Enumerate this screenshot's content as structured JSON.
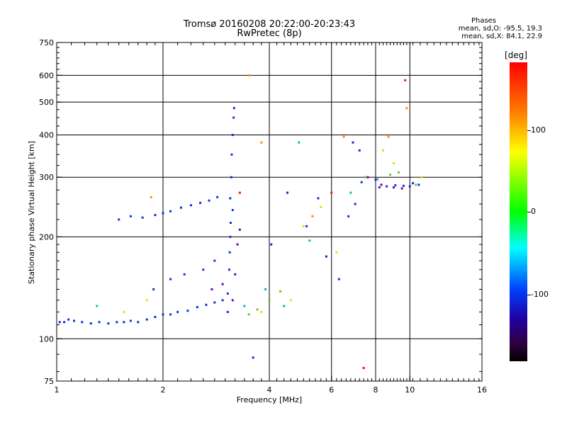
{
  "header": {
    "title_line1": "Tromsø 20160208 20:22:00-20:23:43",
    "title_line2": "RwPretec (8p)"
  },
  "phases": {
    "heading": "Phases",
    "line_o": "mean, sd,O: -95.5, 19.3",
    "line_x": "mean, sd,X:  84.1, 22.9"
  },
  "colorbar": {
    "unit": "[deg]",
    "ticks": [
      "100",
      "0",
      "-100"
    ],
    "colors": [
      "#ff0000",
      "#ff8000",
      "#ffff00",
      "#00ff00",
      "#00ffff",
      "#0040ff",
      "#2000a0",
      "#000000"
    ]
  },
  "chart_data": {
    "type": "scatter",
    "title": "",
    "xlabel": "Frequency [MHz]",
    "ylabel": "Stationary phase Virtual Height [km]",
    "xscale": "log",
    "yscale": "log",
    "xlim": [
      1,
      16
    ],
    "ylim": [
      75,
      750
    ],
    "xticks": [
      1,
      2,
      4,
      6,
      8,
      10,
      16
    ],
    "xtick_labels": [
      "1",
      "2",
      "4",
      "6",
      "8",
      "10",
      "16"
    ],
    "yticks": [
      75,
      100,
      200,
      300,
      400,
      500,
      600,
      750
    ],
    "ytick_labels": [
      "75",
      "100",
      "200",
      "300",
      "400",
      "500",
      "600",
      "750"
    ],
    "grid": true,
    "color_by": "phase (deg)",
    "series": [
      {
        "color": "#1030e0",
        "points": [
          [
            1.02,
            112
          ],
          [
            1.05,
            112
          ],
          [
            1.08,
            114
          ],
          [
            1.12,
            113
          ],
          [
            1.18,
            112
          ],
          [
            1.25,
            111
          ],
          [
            1.32,
            112
          ],
          [
            1.4,
            111
          ],
          [
            1.48,
            112
          ],
          [
            1.55,
            112
          ],
          [
            1.62,
            113
          ],
          [
            1.7,
            112
          ],
          [
            1.8,
            114
          ],
          [
            1.9,
            116
          ],
          [
            2.0,
            118
          ],
          [
            2.1,
            118
          ],
          [
            2.2,
            120
          ],
          [
            2.35,
            121
          ],
          [
            2.5,
            124
          ],
          [
            2.65,
            126
          ],
          [
            2.8,
            128
          ],
          [
            2.95,
            130
          ],
          [
            3.05,
            136
          ],
          [
            3.08,
            160
          ],
          [
            3.1,
            200
          ],
          [
            3.1,
            260
          ],
          [
            3.12,
            300
          ],
          [
            3.13,
            350
          ],
          [
            3.15,
            400
          ],
          [
            3.17,
            450
          ],
          [
            3.18,
            480
          ],
          [
            3.15,
            240
          ],
          [
            3.11,
            220
          ],
          [
            3.09,
            180
          ],
          [
            1.5,
            225
          ],
          [
            1.62,
            230
          ],
          [
            1.75,
            228
          ],
          [
            1.9,
            232
          ],
          [
            2.0,
            235
          ],
          [
            2.1,
            238
          ],
          [
            2.25,
            244
          ],
          [
            2.4,
            248
          ],
          [
            2.55,
            252
          ],
          [
            2.7,
            256
          ],
          [
            2.85,
            262
          ],
          [
            1.88,
            140
          ],
          [
            2.1,
            150
          ],
          [
            2.3,
            155
          ],
          [
            2.6,
            160
          ],
          [
            2.8,
            170
          ],
          [
            5.1,
            215
          ],
          [
            5.5,
            260
          ],
          [
            6.7,
            230
          ],
          [
            7.0,
            250
          ],
          [
            7.3,
            290
          ],
          [
            8.2,
            280
          ],
          [
            8.6,
            282
          ],
          [
            9.1,
            284
          ],
          [
            9.6,
            283
          ],
          [
            10.2,
            288
          ],
          [
            10.6,
            285
          ],
          [
            3.6,
            88
          ]
        ]
      },
      {
        "color": "#6a00c0",
        "points": [
          [
            6.9,
            380
          ],
          [
            7.2,
            360
          ],
          [
            7.6,
            300
          ],
          [
            8.0,
            295
          ],
          [
            8.3,
            285
          ],
          [
            9.0,
            280
          ],
          [
            9.5,
            278
          ],
          [
            10.0,
            282
          ],
          [
            3.05,
            120
          ],
          [
            3.15,
            130
          ],
          [
            3.2,
            155
          ],
          [
            3.25,
            190
          ],
          [
            3.3,
            210
          ],
          [
            2.75,
            140
          ],
          [
            2.95,
            145
          ],
          [
            4.05,
            190
          ],
          [
            4.5,
            270
          ],
          [
            5.8,
            175
          ],
          [
            6.3,
            150
          ],
          [
            7.4,
            82
          ]
        ]
      },
      {
        "color": "#00c0c0",
        "points": [
          [
            1.3,
            125
          ],
          [
            3.4,
            125
          ],
          [
            3.9,
            140
          ],
          [
            4.4,
            125
          ],
          [
            4.85,
            380
          ],
          [
            5.2,
            195
          ],
          [
            6.8,
            270
          ],
          [
            8.1,
            296
          ]
        ]
      },
      {
        "color": "#60d020",
        "points": [
          [
            3.5,
            118
          ],
          [
            3.7,
            122
          ],
          [
            4.0,
            130
          ],
          [
            4.3,
            138
          ],
          [
            7.5,
            300
          ],
          [
            8.8,
            305
          ],
          [
            9.3,
            310
          ],
          [
            10.4,
            285
          ]
        ]
      },
      {
        "color": "#e0e000",
        "points": [
          [
            1.55,
            120
          ],
          [
            1.8,
            130
          ],
          [
            3.8,
            120
          ],
          [
            4.6,
            130
          ],
          [
            5.0,
            215
          ],
          [
            5.6,
            245
          ],
          [
            6.2,
            180
          ],
          [
            8.4,
            360
          ],
          [
            9.0,
            330
          ],
          [
            10.8,
            300
          ]
        ]
      },
      {
        "color": "#ff9000",
        "points": [
          [
            1.85,
            262
          ],
          [
            3.5,
            600
          ],
          [
            3.8,
            380
          ],
          [
            5.3,
            230
          ],
          [
            6.5,
            395
          ],
          [
            8.7,
            395
          ],
          [
            9.8,
            480
          ]
        ]
      },
      {
        "color": "#ff1a00",
        "points": [
          [
            3.3,
            270
          ],
          [
            6.0,
            270
          ],
          [
            7.4,
            82
          ],
          [
            9.7,
            580
          ]
        ]
      }
    ]
  }
}
